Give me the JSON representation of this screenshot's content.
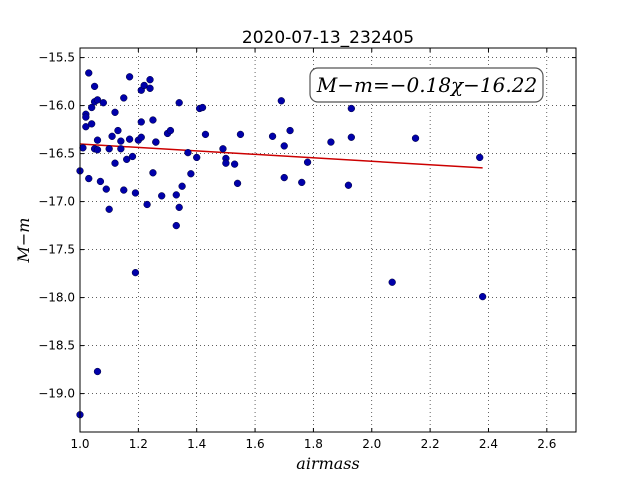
{
  "chart_data": {
    "type": "scatter",
    "title": "2020-07-13_232405",
    "xlabel": "airmass",
    "ylabel": "M−m",
    "xlim": [
      1.0,
      2.7
    ],
    "ylim": [
      -19.4,
      -15.4
    ],
    "x_ticks": [
      1.0,
      1.2,
      1.4,
      1.6,
      1.8,
      2.0,
      2.2,
      2.4,
      2.6
    ],
    "x_tick_labels": [
      "1.0",
      "1.2",
      "1.4",
      "1.6",
      "1.8",
      "2.0",
      "2.2",
      "2.4",
      "2.6"
    ],
    "y_ticks": [
      -15.5,
      -16.0,
      -16.5,
      -17.0,
      -17.5,
      -18.0,
      -18.5,
      -19.0
    ],
    "y_tick_labels": [
      "−15.5",
      "−16.0",
      "−16.5",
      "−17.0",
      "−17.5",
      "−18.0",
      "−18.5",
      "−19.0"
    ],
    "grid": true,
    "annotation": "M−m=−0.18χ−16.22",
    "fit": {
      "slope": -0.18,
      "intercept": -16.22,
      "x_range": [
        1.0,
        2.38
      ],
      "color": "#cc0000"
    },
    "point_color": "#0000aa",
    "series": [
      {
        "x": [
          1.0,
          1.0,
          1.01,
          1.02,
          1.02,
          1.02,
          1.03,
          1.03,
          1.04,
          1.04,
          1.05,
          1.05,
          1.05,
          1.06,
          1.06,
          1.06,
          1.06,
          1.07,
          1.08,
          1.09,
          1.1,
          1.1,
          1.11,
          1.12,
          1.12,
          1.13,
          1.14,
          1.14,
          1.15,
          1.15,
          1.16,
          1.17,
          1.17,
          1.18,
          1.19,
          1.19,
          1.2,
          1.21,
          1.21,
          1.21,
          1.22,
          1.23,
          1.24,
          1.24,
          1.25,
          1.25,
          1.26,
          1.26,
          1.28,
          1.3,
          1.31,
          1.33,
          1.33,
          1.34,
          1.34,
          1.35,
          1.37,
          1.38,
          1.4,
          1.41,
          1.42,
          1.43,
          1.49,
          1.5,
          1.5,
          1.53,
          1.54,
          1.55,
          1.66,
          1.69,
          1.7,
          1.7,
          1.72,
          1.76,
          1.78,
          1.86,
          1.92,
          1.93,
          1.93,
          2.07,
          2.15,
          2.37,
          2.38
        ],
        "y": [
          -19.22,
          -16.68,
          -16.44,
          -16.09,
          -16.12,
          -16.22,
          -15.66,
          -16.76,
          -16.02,
          -16.19,
          -15.96,
          -15.8,
          -16.45,
          -16.46,
          -16.36,
          -18.77,
          -15.94,
          -16.79,
          -15.97,
          -16.87,
          -17.08,
          -16.45,
          -16.32,
          -16.6,
          -16.07,
          -16.26,
          -16.45,
          -16.37,
          -15.92,
          -16.88,
          -16.56,
          -16.35,
          -15.7,
          -16.53,
          -17.74,
          -16.91,
          -16.36,
          -15.84,
          -16.33,
          -16.17,
          -15.79,
          -17.03,
          -15.73,
          -15.82,
          -16.15,
          -16.7,
          -16.38,
          -16.38,
          -16.94,
          -16.29,
          -16.26,
          -17.25,
          -16.93,
          -15.97,
          -17.06,
          -16.84,
          -16.49,
          -16.71,
          -16.54,
          -16.03,
          -16.02,
          -16.3,
          -16.45,
          -16.55,
          -16.6,
          -16.61,
          -16.81,
          -16.3,
          -16.32,
          -15.95,
          -16.42,
          -16.75,
          -16.26,
          -16.8,
          -16.59,
          -16.38,
          -16.83,
          -16.33,
          -16.03,
          -17.84,
          -16.34,
          -16.54,
          -17.99
        ]
      }
    ]
  }
}
